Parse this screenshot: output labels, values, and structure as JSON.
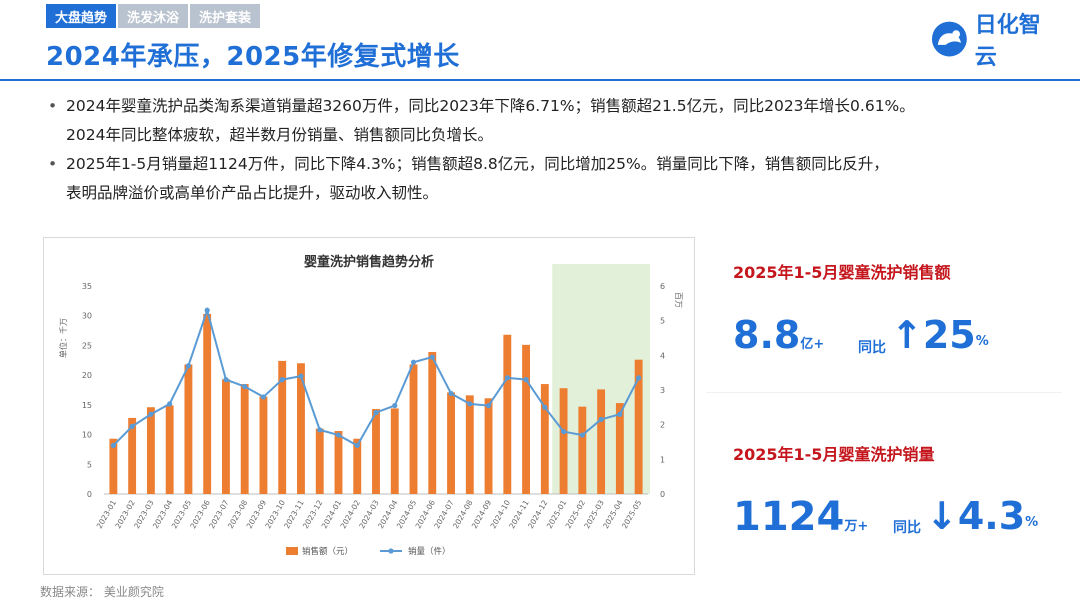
{
  "tabs": [
    {
      "label": "大盘趋势",
      "active": true
    },
    {
      "label": "洗发沐浴",
      "active": false
    },
    {
      "label": "洗护套装",
      "active": false
    }
  ],
  "page_title": "2024年承压，2025年修复式增长",
  "logo": {
    "text": "日化智云",
    "icon": "cloud-logo-icon"
  },
  "bullets": [
    {
      "line1": "2024年婴童洗护品类淘系渠道销量超3260万件，同比2023年下降6.71%；销售额超21.5亿元，同比2023年增长0.61%。",
      "line2": "2024年同比整体疲软，超半数月份销量、销售额同比负增长。"
    },
    {
      "line1": "2025年1-5月销量超1124万件，同比下降4.3%；销售额超8.8亿元，同比增加25%。销量同比下降，销售额同比反升，",
      "line2": "表明品牌溢价或高单价产品占比提升，驱动收入韧性。"
    }
  ],
  "chart_data": {
    "type": "bar+line",
    "title": "婴童洗护销售趋势分析",
    "ylabel_left": "单位：千万",
    "ylabel_right": "百万",
    "ylim_left": [
      0,
      35
    ],
    "ylim_right": [
      0,
      6
    ],
    "yticks_left": [
      0,
      5,
      10,
      15,
      20,
      25,
      30,
      35
    ],
    "yticks_right": [
      0,
      1,
      2,
      3,
      4,
      5,
      6
    ],
    "grid": false,
    "legend_position": "bottom",
    "highlight_range": [
      "2025-01",
      "2025-05"
    ],
    "categories": [
      "2023-01",
      "2023-02",
      "2023-03",
      "2023-04",
      "2023-05",
      "2023-06",
      "2023-07",
      "2023-08",
      "2023-09",
      "2023-10",
      "2023-11",
      "2023-12",
      "2024-01",
      "2024-02",
      "2024-03",
      "2024-04",
      "2024-05",
      "2024-06",
      "2024-07",
      "2024-08",
      "2024-09",
      "2024-10",
      "2024-11",
      "2024-12",
      "2025-01",
      "2025-02",
      "2025-03",
      "2025-04",
      "2025-05"
    ],
    "series": [
      {
        "name": "销售额（元）",
        "type": "bar",
        "axis": "left",
        "color": "#ed7d31",
        "values": [
          9.3,
          12.8,
          14.6,
          14.9,
          21.8,
          30.3,
          19.3,
          18.5,
          16.4,
          22.4,
          22.0,
          11.0,
          10.6,
          9.3,
          14.3,
          14.4,
          21.8,
          23.9,
          17.1,
          16.6,
          16.1,
          26.8,
          25.1,
          18.5,
          17.8,
          14.7,
          17.6,
          15.3,
          22.6
        ]
      },
      {
        "name": "销量（件）",
        "type": "line",
        "axis": "right",
        "color": "#5b9bd5",
        "values": [
          1.4,
          1.95,
          2.3,
          2.6,
          3.7,
          5.3,
          3.3,
          3.1,
          2.8,
          3.3,
          3.4,
          1.85,
          1.7,
          1.4,
          2.35,
          2.55,
          3.8,
          3.95,
          2.9,
          2.6,
          2.55,
          3.35,
          3.3,
          2.5,
          1.8,
          1.7,
          2.15,
          2.3,
          3.35
        ]
      }
    ]
  },
  "kpis": [
    {
      "title": "2025年1-5月婴童洗护销售额",
      "value": "8.8",
      "unit": "亿+",
      "yoy_label": "同比",
      "direction": "up",
      "arrow": "↑",
      "yoy_value": "25",
      "yoy_unit": "%"
    },
    {
      "title": "2025年1-5月婴童洗护销量",
      "value": "1124",
      "unit": "万+",
      "yoy_label": "同比",
      "direction": "down",
      "arrow": "↓",
      "yoy_value": "4.3",
      "yoy_unit": "%"
    }
  ],
  "source": "数据来源：   美业颜究院",
  "colors": {
    "accent": "#1f6fd6",
    "kpi_title": "#c4161c",
    "bar": "#ed7d31",
    "line": "#5b9bd5",
    "highlight": "#e2f0d9"
  }
}
